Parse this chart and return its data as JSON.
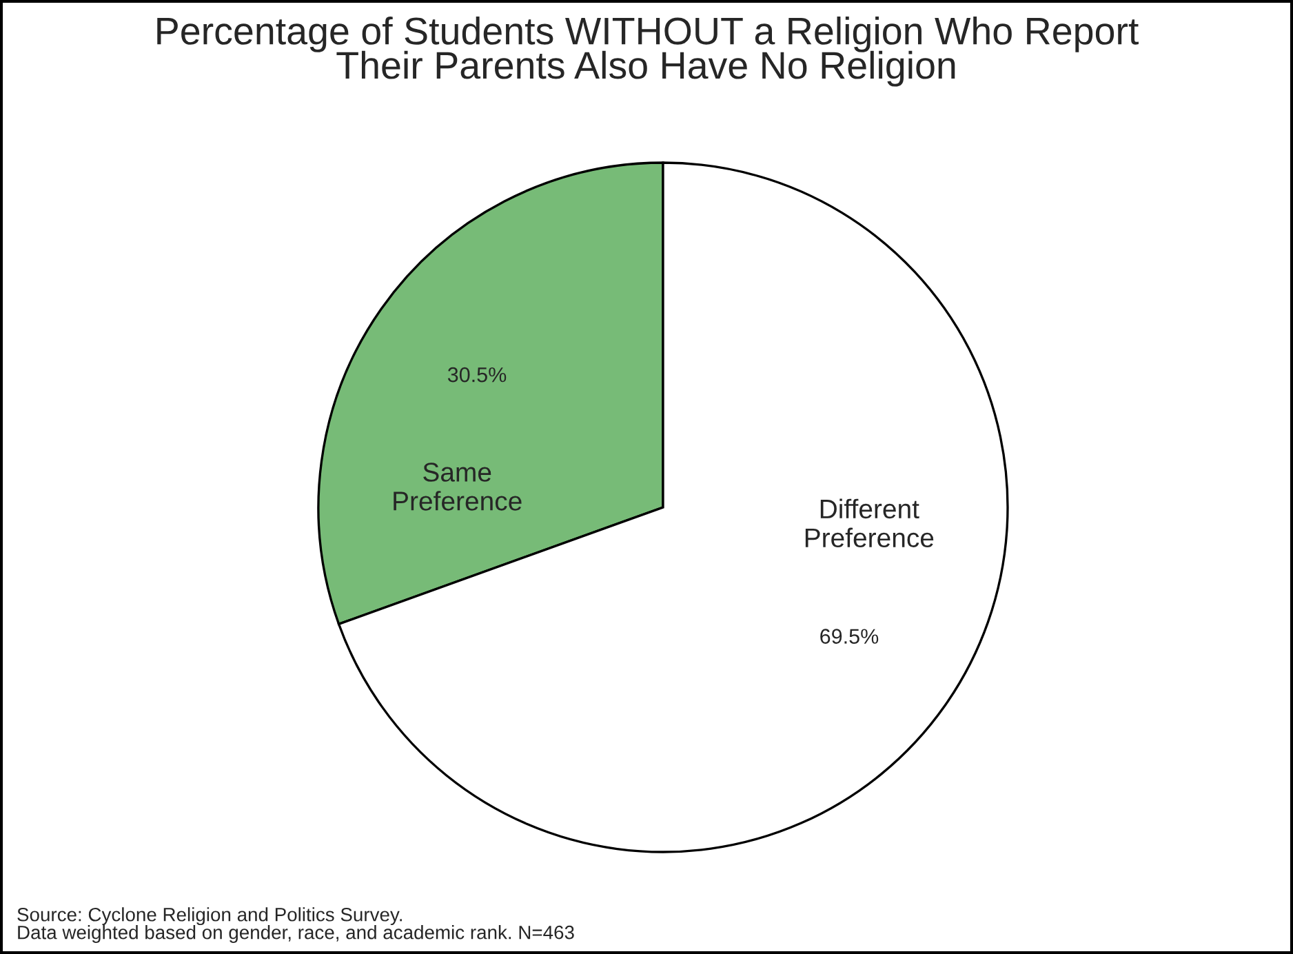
{
  "chart_data": {
    "type": "pie",
    "title": "Percentage of Students WITHOUT a Religion Who Report\nTheir Parents Also Have No Religion",
    "categories": [
      "Same\nPreference",
      "Different\nPreference"
    ],
    "values": [
      30.5,
      69.5
    ],
    "value_labels": [
      "30.5%",
      "69.5%"
    ],
    "colors": [
      "#77bb77",
      "#ffffff"
    ],
    "annotations": [
      "Source: Cyclone Religion and Politics Survey.\nData weighted based on gender, race, and academic rank. N=463"
    ],
    "legend": false
  }
}
